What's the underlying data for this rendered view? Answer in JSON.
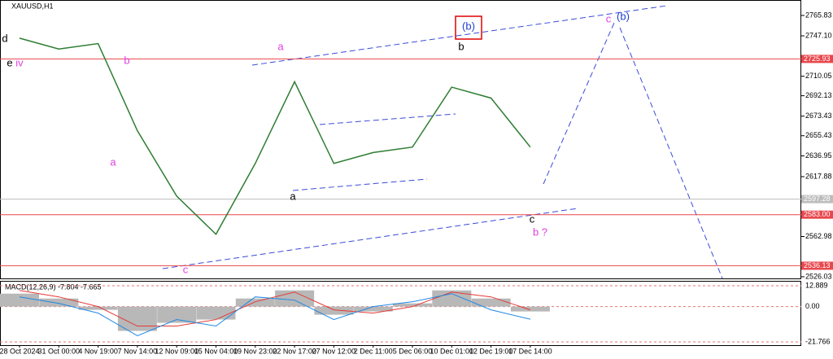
{
  "chart_data": {
    "type": "line",
    "title": "XAUUSD,H1",
    "categories": [
      "28 Oct 2024",
      "31 Oct 00:00",
      "4 Nov 19:00",
      "7 Nov 14:00",
      "12 Nov 09:00",
      "15 Nov 04:00",
      "19 Nov 23:00",
      "22 Nov 17:00",
      "27 Nov 12:00",
      "2 Dec 11:00",
      "5 Dec 06:00",
      "10 Dec 01:00",
      "12 Dec 19:00",
      "17 Dec 14:00"
    ],
    "series": [
      {
        "name": "XAUUSD,H1",
        "color": "#2e7d32",
        "values": [
          2745,
          2735,
          2740,
          2660,
          2600,
          2565,
          2630,
          2705,
          2630,
          2640,
          2645,
          2700,
          2690,
          2645
        ]
      }
    ],
    "ylim": [
      2524.5,
      2780.0
    ],
    "yticks": [
      2765.83,
      {
        "value": 2747.1,
        "label": "2747.10"
      },
      2710.05,
      2692.13,
      2673.43,
      2655.43,
      2636.95,
      2617.88,
      2562.98,
      2526.03
    ],
    "levels": [
      {
        "value": 2725.93,
        "color": "#e8474c"
      },
      {
        "value": 2597.28,
        "color": "#bdbdbd"
      },
      {
        "value": 2583,
        "label": "2583.00",
        "color": "#e8474c"
      },
      {
        "value": 2536.13,
        "color": "#e8474c"
      }
    ],
    "annotations": [
      {
        "text": "d",
        "color": "#000000"
      },
      {
        "text": "e",
        "color": "#000000"
      },
      {
        "text": "iv",
        "color": "#e040e0"
      },
      {
        "text": "b",
        "color": "#e040e0"
      },
      {
        "text": "a",
        "color": "#e040e0"
      },
      {
        "text": "c",
        "color": "#e040e0"
      },
      {
        "text": "a",
        "color": "#e040e0"
      },
      {
        "text": "a",
        "color": "#000000"
      },
      {
        "text": "(b)",
        "color": "#1f3fd0"
      },
      {
        "text": "b",
        "color": "#000000"
      },
      {
        "text": "c",
        "color": "#000000"
      },
      {
        "text": "b ?",
        "color": "#e040e0"
      },
      {
        "text": "c",
        "color": "#e040e0"
      },
      {
        "text": "(b)",
        "color": "#1f3fd0"
      }
    ],
    "macd": {
      "title": "MACD(12,26,9) -7.804 -7.665",
      "ylim": [
        -23.8,
        15.9
      ],
      "yticks": [
        12.889,
        {
          "value": 0,
          "label": "0.00"
        },
        -21.766
      ],
      "series": [
        {
          "name": "histogram",
          "color": "#b8b8b8",
          "values": [
            8,
            5,
            -2,
            -15,
            -10,
            -8,
            5,
            10,
            -5,
            -3,
            2,
            10,
            5,
            -3
          ]
        },
        {
          "name": "signal",
          "color": "#e53935",
          "values": [
            10,
            6,
            0,
            -12,
            -12,
            -8,
            3,
            9,
            -2,
            -4,
            0,
            9,
            6,
            -2
          ]
        },
        {
          "name": "macd",
          "color": "#1e88e5",
          "values": [
            6,
            2,
            -4,
            -18,
            -8,
            -12,
            6,
            4,
            -8,
            0,
            3,
            8,
            -2,
            -7.8
          ]
        }
      ]
    }
  }
}
